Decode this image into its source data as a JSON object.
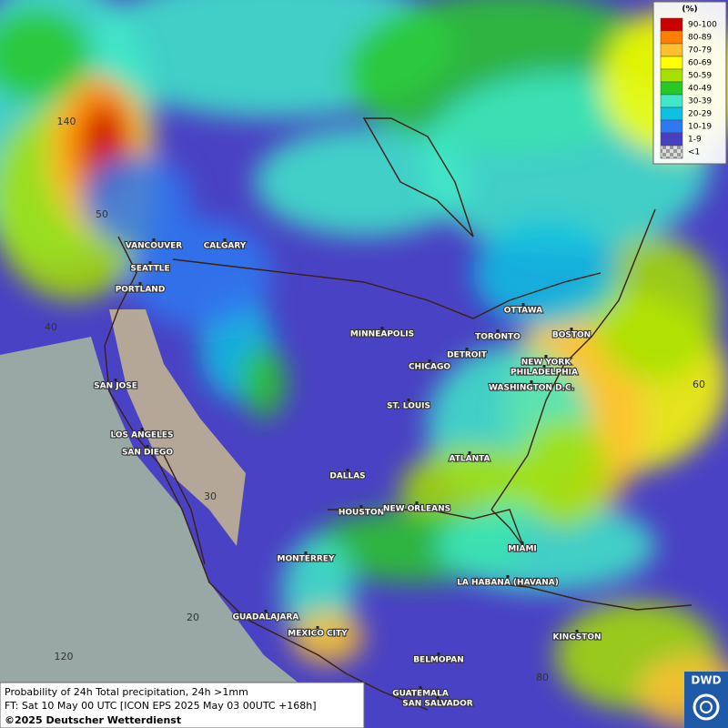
{
  "legend": {
    "title": "(%)",
    "items": [
      {
        "label": "90-100",
        "color": "#c80000"
      },
      {
        "label": "80-89",
        "color": "#ff8000"
      },
      {
        "label": "70-79",
        "color": "#ffc030"
      },
      {
        "label": "60-69",
        "color": "#ffff00"
      },
      {
        "label": "50-59",
        "color": "#a8e000"
      },
      {
        "label": "40-49",
        "color": "#28c828"
      },
      {
        "label": "30-39",
        "color": "#40e8c8"
      },
      {
        "label": "20-29",
        "color": "#10c0e0"
      },
      {
        "label": "10-19",
        "color": "#3078f0"
      },
      {
        "label": "1-9",
        "color": "#4840c0"
      },
      {
        "label": "<1",
        "color": "#b0b0b0"
      }
    ]
  },
  "cities": [
    "VANCOUVER",
    "CALGARY",
    "SEATTLE",
    "PORTLAND",
    "MINNEAPOLIS",
    "OTTAWA",
    "TORONTO",
    "DETROIT",
    "BOSTON",
    "CHICAGO",
    "NEW YORK",
    "PHILADELPHIA",
    "WASHINGTON D.C.",
    "SAN JOSE",
    "ST. LOUIS",
    "LOS ANGELES",
    "SAN DIEGO",
    "ATLANTA",
    "DALLAS",
    "HOUSTON",
    "NEW ORLEANS",
    "MIAMI",
    "MONTERREY",
    "LA HABANA (HAVANA)",
    "GUADALAJARA",
    "MEXICO CITY",
    "KINGSTON",
    "BELMOPAN",
    "GUATEMALA",
    "SAN SALVADOR"
  ],
  "grid_labels": [
    140,
    50,
    40,
    30,
    20,
    120,
    60,
    80
  ],
  "footer": {
    "line1": "Probability of 24h Total precipitation, 24h >1mm",
    "line2": "FT: Sat 10 May 00 UTC [ICON EPS 2025 May 03 00UTC +168h]",
    "copyright": "©2025 Deutscher Wetterdienst"
  },
  "logo": "DWD"
}
